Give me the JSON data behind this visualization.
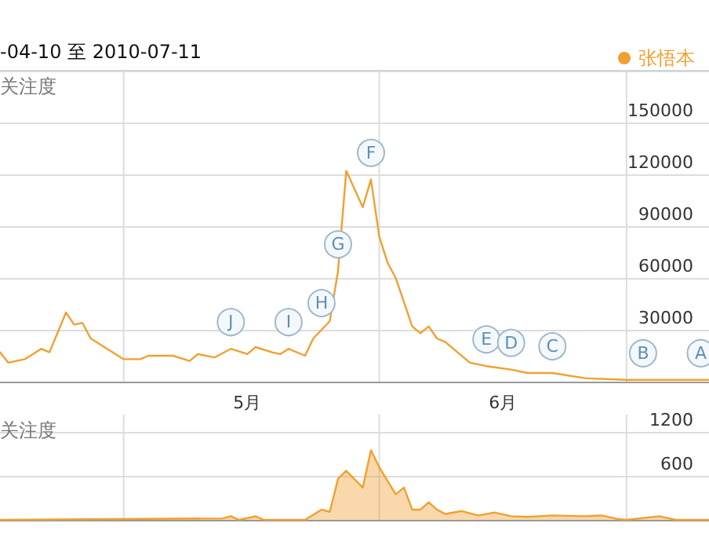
{
  "chart_data": [
    {
      "type": "line",
      "title": "-04-10 至 2010-07-11",
      "ylabel": "关注度",
      "legend": "top right",
      "grid": true,
      "marker": "none",
      "line_style": "solid",
      "xlim": [
        "2010-04-16",
        "2010-07-11"
      ],
      "xticks": [
        {
          "value": "2010-05-01",
          "label": null
        },
        {
          "value": "2010-05-16",
          "label": "5月"
        },
        {
          "value": "2010-06-01",
          "label": null
        },
        {
          "value": "2010-06-16",
          "label": "6月"
        },
        {
          "value": "2010-07-01",
          "label": null
        }
      ],
      "ylim": [
        0,
        180000
      ],
      "yticks": [
        30000,
        60000,
        90000,
        120000,
        150000
      ],
      "series": [
        {
          "name": "张悟本",
          "color": "#f0a030",
          "x": [
            "2010-04-16",
            "2010-04-17",
            "2010-04-19",
            "2010-04-21",
            "2010-04-22",
            "2010-04-24",
            "2010-04-25",
            "2010-04-26",
            "2010-04-27",
            "2010-05-01",
            "2010-05-03",
            "2010-05-04",
            "2010-05-07",
            "2010-05-09",
            "2010-05-10",
            "2010-05-12",
            "2010-05-14",
            "2010-05-16",
            "2010-05-17",
            "2010-05-19",
            "2010-05-20",
            "2010-05-21",
            "2010-05-23",
            "2010-05-24",
            "2010-05-26",
            "2010-05-27",
            "2010-05-28",
            "2010-05-30",
            "2010-05-31",
            "2010-06-01",
            "2010-06-02",
            "2010-06-03",
            "2010-06-05",
            "2010-06-06",
            "2010-06-07",
            "2010-06-08",
            "2010-06-09",
            "2010-06-12",
            "2010-06-14",
            "2010-06-17",
            "2010-06-19",
            "2010-06-22",
            "2010-06-26",
            "2010-07-01",
            "2010-07-11"
          ],
          "values": [
            17000,
            11000,
            13000,
            19000,
            17000,
            40000,
            33000,
            34000,
            25000,
            13000,
            13000,
            15000,
            15000,
            12000,
            16000,
            14000,
            19000,
            16000,
            20000,
            17000,
            16000,
            19000,
            15000,
            25000,
            35000,
            64000,
            122000,
            101000,
            117000,
            84000,
            69000,
            60000,
            32000,
            28000,
            32000,
            25000,
            23000,
            11000,
            9000,
            7000,
            5000,
            5000,
            2000,
            1000,
            1000
          ]
        }
      ],
      "annotations": [
        {
          "text": "J",
          "x": "2010-05-14",
          "y": 19000
        },
        {
          "text": "I",
          "x": "2010-05-21",
          "y": 19000
        },
        {
          "text": "H",
          "x": "2010-05-25",
          "y": 30000
        },
        {
          "text": "G",
          "x": "2010-05-27",
          "y": 64000
        },
        {
          "text": "F",
          "x": "2010-05-31",
          "y": 117000
        },
        {
          "text": "E",
          "x": "2010-06-14",
          "y": 9000
        },
        {
          "text": "D",
          "x": "2010-06-17",
          "y": 7000
        },
        {
          "text": "C",
          "x": "2010-06-22",
          "y": 5000
        },
        {
          "text": "B",
          "x": "2010-07-03",
          "y": 1000
        },
        {
          "text": "A",
          "x": "2010-07-10",
          "y": 1000
        }
      ]
    },
    {
      "type": "area",
      "ylabel": "关注度",
      "grid": true,
      "tick_labels": "y",
      "marker": "none",
      "xlim": [
        "2010-04-16",
        "2010-07-11"
      ],
      "xticks": [
        {
          "value": "2010-05-01",
          "label": null
        },
        {
          "value": "2010-06-01",
          "label": null
        },
        {
          "value": "2010-07-01",
          "label": null
        }
      ],
      "ylim": [
        0,
        1200
      ],
      "yticks": [
        600,
        1200
      ],
      "series": [
        {
          "color": "#f0a030",
          "x": [
            "2010-04-16",
            "2010-05-13",
            "2010-05-14",
            "2010-05-15",
            "2010-05-17",
            "2010-05-18",
            "2010-05-23",
            "2010-05-25",
            "2010-05-26",
            "2010-05-27",
            "2010-05-28",
            "2010-05-30",
            "2010-05-31",
            "2010-06-01",
            "2010-06-03",
            "2010-06-04",
            "2010-06-05",
            "2010-06-06",
            "2010-06-07",
            "2010-06-08",
            "2010-06-09",
            "2010-06-11",
            "2010-06-13",
            "2010-06-15",
            "2010-06-17",
            "2010-06-19",
            "2010-06-22",
            "2010-06-26",
            "2010-06-28",
            "2010-06-30",
            "2010-07-01",
            "2010-07-05",
            "2010-07-07",
            "2010-07-11"
          ],
          "values": [
            0,
            20,
            50,
            0,
            50,
            0,
            0,
            140,
            110,
            560,
            670,
            440,
            950,
            720,
            350,
            440,
            140,
            140,
            240,
            140,
            80,
            120,
            60,
            100,
            50,
            40,
            60,
            50,
            60,
            10,
            0,
            50,
            0,
            0
          ]
        }
      ]
    }
  ]
}
